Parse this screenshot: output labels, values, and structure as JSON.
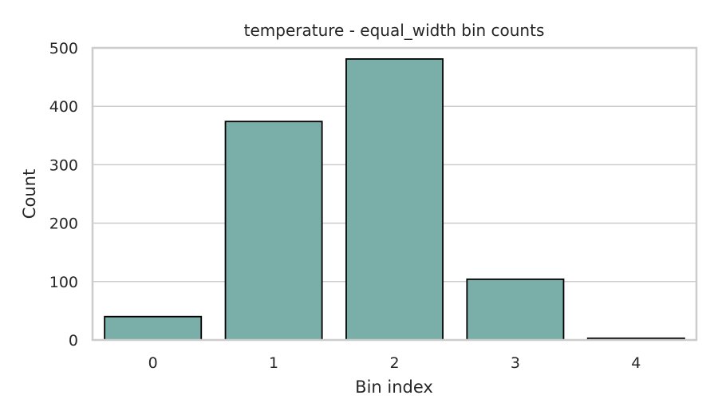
{
  "chart_data": {
    "type": "bar",
    "title": "temperature - equal_width bin counts",
    "xlabel": "Bin index",
    "ylabel": "Count",
    "categories": [
      "0",
      "1",
      "2",
      "3",
      "4"
    ],
    "values": [
      40,
      374,
      481,
      104,
      3
    ],
    "ylim": [
      0,
      500
    ],
    "yticks": [
      0,
      100,
      200,
      300,
      400,
      500
    ],
    "grid": true,
    "bar_color": "#7aaea8",
    "bar_edge_color": "#000000"
  }
}
